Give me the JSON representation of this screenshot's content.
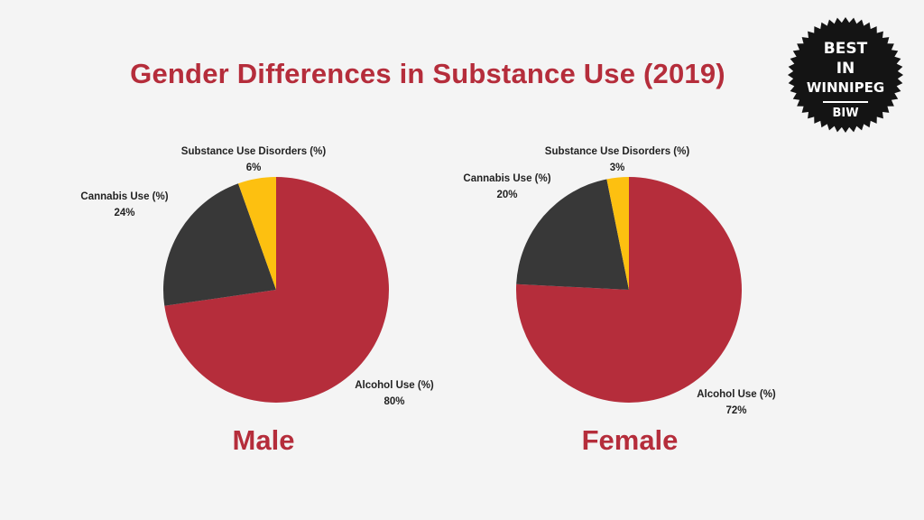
{
  "title": "Gender Differences in Substance Use (2019)",
  "badge": {
    "line1": "BEST",
    "line2": "IN",
    "line3": "WINNIPEG",
    "line4": "BIW"
  },
  "colors": {
    "alcohol": "#b52d3b",
    "cannabis": "#383838",
    "disorders": "#fdc010",
    "title": "#b52d3b"
  },
  "chart_data": [
    {
      "type": "pie",
      "title": "Male",
      "slices": [
        {
          "label": "Alcohol Use (%)",
          "value": 80,
          "display": "80%"
        },
        {
          "label": "Cannabis Use (%)",
          "value": 24,
          "display": "24%"
        },
        {
          "label": "Substance Use Disorders (%)",
          "value": 6,
          "display": "6%"
        }
      ]
    },
    {
      "type": "pie",
      "title": "Female",
      "slices": [
        {
          "label": "Alcohol Use (%)",
          "value": 72,
          "display": "72%"
        },
        {
          "label": "Cannabis Use (%)",
          "value": 20,
          "display": "20%"
        },
        {
          "label": "Substance Use Disorders (%)",
          "value": 3,
          "display": "3%"
        }
      ]
    }
  ]
}
